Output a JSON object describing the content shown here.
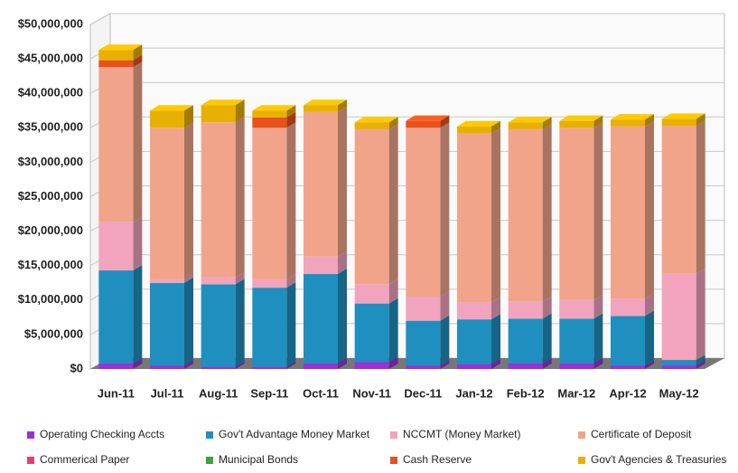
{
  "chart_data": {
    "type": "bar3d_stacked",
    "categories": [
      "Jun-11",
      "Jul-11",
      "Aug-11",
      "Sep-11",
      "Oct-11",
      "Nov-11",
      "Dec-11",
      "Jan-12",
      "Feb-12",
      "Mar-12",
      "Apr-12",
      "May-12"
    ],
    "series": [
      {
        "name": "Operating Checking Accts",
        "color": "#9b30d9",
        "values": [
          800000,
          500000,
          300000,
          300000,
          800000,
          1000000,
          500000,
          700000,
          800000,
          800000,
          500000,
          500000
        ]
      },
      {
        "name": "Gov't Advantage Money Market",
        "color": "#1f8fbf",
        "values": [
          13500000,
          12000000,
          12000000,
          11500000,
          13000000,
          8500000,
          6500000,
          6500000,
          6500000,
          6500000,
          7200000,
          800000
        ]
      },
      {
        "name": "NCCMT (Money Market)",
        "color": "#f2a3bd",
        "values": [
          7000000,
          500000,
          1000000,
          1200000,
          2500000,
          2800000,
          3500000,
          2500000,
          2500000,
          2700000,
          2500000,
          12500000
        ]
      },
      {
        "name": "Certificate of Deposit",
        "color": "#f2a48a",
        "values": [
          22500000,
          22000000,
          22500000,
          22000000,
          21000000,
          22500000,
          24500000,
          24500000,
          25000000,
          25000000,
          25000000,
          21500000
        ]
      },
      {
        "name": "Commerical Paper",
        "color": "#e0407a",
        "values": [
          0,
          0,
          0,
          0,
          0,
          0,
          0,
          0,
          0,
          0,
          0,
          0
        ]
      },
      {
        "name": "Municipal Bonds",
        "color": "#3aa33a",
        "values": [
          0,
          0,
          0,
          0,
          0,
          0,
          0,
          0,
          0,
          0,
          0,
          0
        ]
      },
      {
        "name": "Cash  Reserve",
        "color": "#e8501c",
        "values": [
          1000000,
          0,
          0,
          1500000,
          0,
          0,
          1000000,
          0,
          0,
          0,
          0,
          0
        ]
      },
      {
        "name": "Gov't Agencies & Treasuries",
        "color": "#e8b000",
        "values": [
          1500000,
          2500000,
          2500000,
          1000000,
          1000000,
          1000000,
          0,
          1000000,
          1000000,
          1000000,
          1000000,
          1000000
        ]
      }
    ],
    "ylim": [
      0,
      50000000
    ],
    "yticks": [
      {
        "value": 0,
        "label": "$0"
      },
      {
        "value": 5000000,
        "label": "$5,000,000"
      },
      {
        "value": 10000000,
        "label": "$10,000,000"
      },
      {
        "value": 15000000,
        "label": "$15,000,000"
      },
      {
        "value": 20000000,
        "label": "$20,000,000"
      },
      {
        "value": 25000000,
        "label": "$25,000,000"
      },
      {
        "value": 30000000,
        "label": "$30,000,000"
      },
      {
        "value": 35000000,
        "label": "$35,000,000"
      },
      {
        "value": 40000000,
        "label": "$40,000,000"
      },
      {
        "value": 45000000,
        "label": "$45,000,000"
      },
      {
        "value": 50000000,
        "label": "$50,000,000"
      }
    ],
    "grid": true
  }
}
